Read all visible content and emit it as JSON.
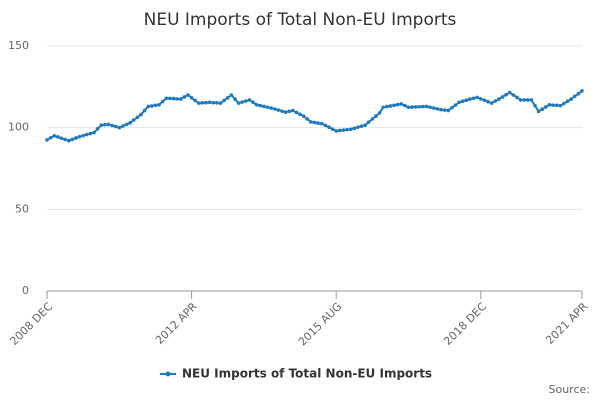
{
  "chart_data": {
    "type": "line",
    "title": "NEU Imports of Total Non-EU Imports",
    "categories": [
      "2008 DEC",
      null,
      null,
      null,
      null,
      null,
      null,
      null,
      null,
      null,
      null,
      null,
      null,
      null,
      null,
      null,
      null,
      null,
      null,
      null,
      null,
      null,
      null,
      null,
      null,
      null,
      null,
      null,
      null,
      null,
      null,
      null,
      null,
      null,
      null,
      null,
      null,
      null,
      null,
      null,
      "2012 APR",
      null,
      null,
      null,
      null,
      null,
      null,
      null,
      null,
      null,
      null,
      null,
      null,
      null,
      null,
      null,
      null,
      null,
      null,
      null,
      null,
      null,
      null,
      null,
      null,
      null,
      null,
      null,
      null,
      null,
      null,
      null,
      null,
      null,
      null,
      null,
      null,
      null,
      null,
      null,
      "2015 AUG",
      null,
      null,
      null,
      null,
      null,
      null,
      null,
      null,
      null,
      null,
      null,
      null,
      null,
      null,
      null,
      null,
      null,
      null,
      null,
      null,
      null,
      null,
      null,
      null,
      null,
      null,
      null,
      null,
      null,
      null,
      null,
      null,
      null,
      null,
      null,
      null,
      null,
      null,
      null,
      "2018 DEC",
      null,
      null,
      null,
      null,
      null,
      null,
      null,
      null,
      null,
      null,
      null,
      null,
      null,
      null,
      null,
      null,
      null,
      null,
      null,
      null,
      null,
      null,
      null,
      null,
      null,
      null,
      null,
      "2021 APR"
    ],
    "series": [
      {
        "name": "NEU Imports of Total Non-EU Imports",
        "color": "#1f7bbf",
        "values": [
          92.5,
          93.8,
          95,
          94.3,
          93.5,
          92.8,
          92,
          92.8,
          93.7,
          94.5,
          95.1,
          95.8,
          96.4,
          97,
          99.3,
          101.5,
          101.8,
          102,
          101.3,
          100.7,
          100,
          101,
          102,
          103,
          104.7,
          106.3,
          108,
          110.5,
          113,
          113.3,
          113.7,
          114,
          116,
          118,
          117.9,
          117.8,
          117.6,
          117.5,
          118.8,
          120,
          118.3,
          116.7,
          115,
          115.2,
          115.3,
          115.5,
          115.3,
          115.2,
          115,
          116.7,
          118.3,
          120,
          117.5,
          115,
          115.7,
          116.3,
          117,
          115.5,
          114,
          113.5,
          113,
          112.5,
          112,
          111.4,
          110.8,
          110.1,
          109.5,
          110,
          110.5,
          109.3,
          108.2,
          107,
          105.3,
          103.5,
          103.2,
          102.8,
          102.5,
          101.4,
          100.3,
          99.1,
          98,
          98.3,
          98.5,
          98.8,
          99,
          99.6,
          100.3,
          100.9,
          101.5,
          103.4,
          105.3,
          107.1,
          109,
          112.5,
          112.9,
          113.3,
          113.7,
          114.1,
          114.5,
          113.5,
          112.5,
          112.6,
          112.7,
          112.8,
          112.9,
          113,
          112.5,
          112,
          111.5,
          111,
          110.8,
          110.5,
          112.2,
          113.8,
          115.5,
          116.2,
          116.8,
          117.5,
          118,
          118.5,
          117.6,
          116.8,
          115.9,
          115,
          116.3,
          117.5,
          118.8,
          120.2,
          121.5,
          120,
          118.5,
          117,
          117,
          117,
          117,
          113.5,
          110,
          111.3,
          112.7,
          114,
          113.8,
          113.7,
          113.5,
          114.8,
          116.2,
          117.5,
          119.2,
          120.8,
          122.5
        ]
      }
    ],
    "ylim": [
      0,
      150
    ],
    "yticks": [
      0,
      50,
      100,
      150
    ],
    "grid": true,
    "source_label": "Source:"
  }
}
